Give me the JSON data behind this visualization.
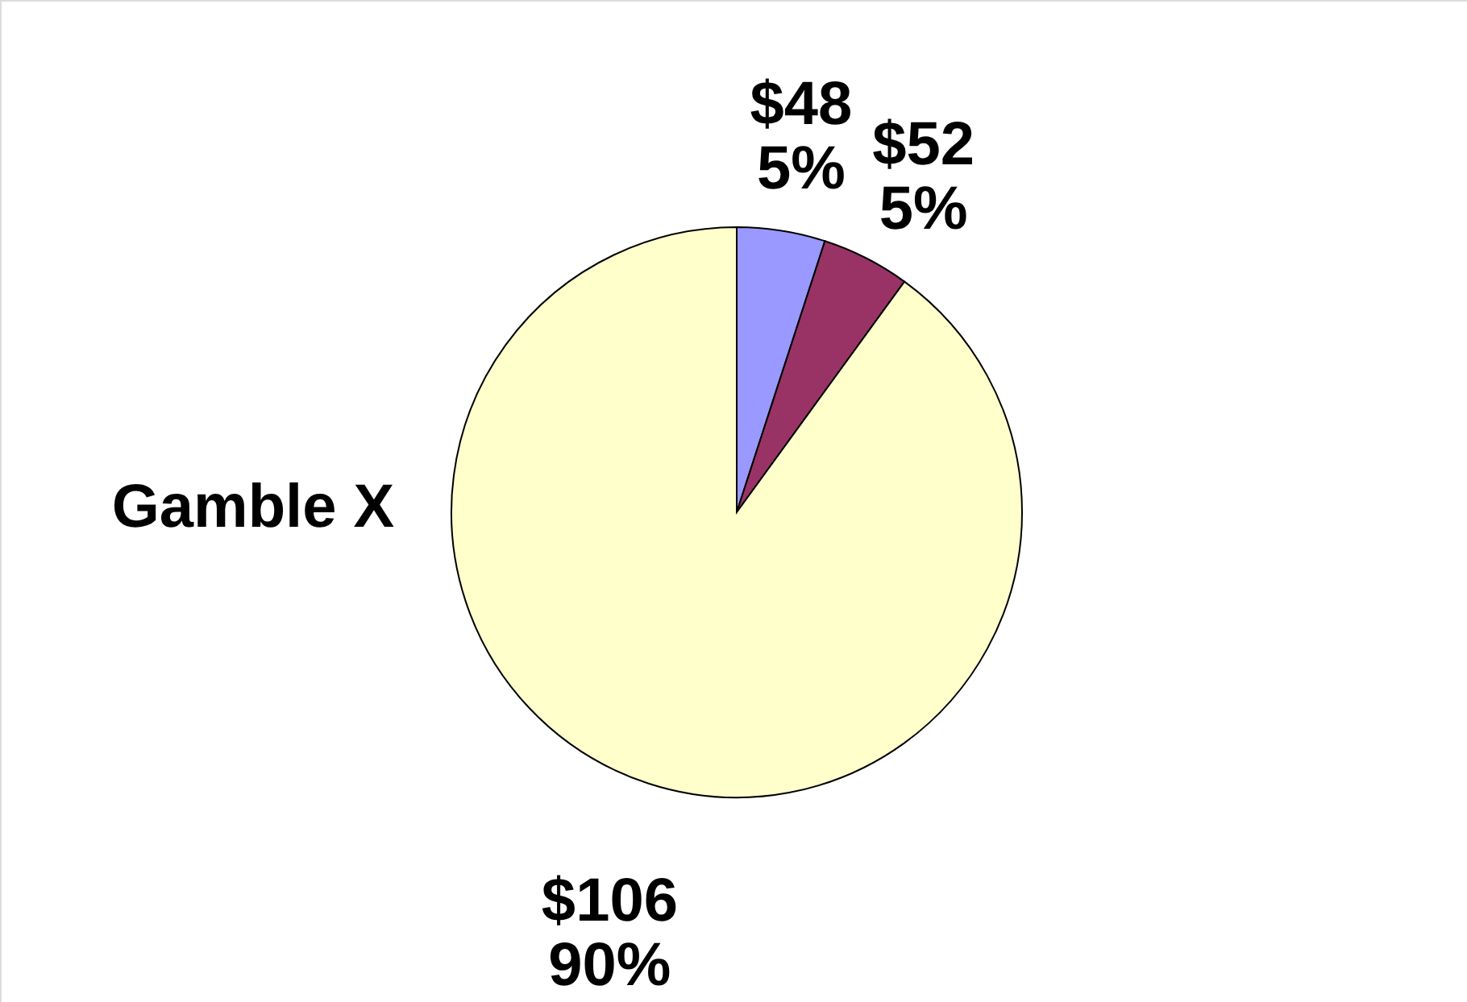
{
  "chart_data": {
    "type": "pie",
    "title": "Gamble X",
    "categories": [
      "$48",
      "$52",
      "$106"
    ],
    "values": [
      5,
      5,
      90
    ],
    "value_labels": [
      "5%",
      "5%",
      "90%"
    ],
    "colors": [
      "#9999ff",
      "#993366",
      "#ffffcc"
    ]
  }
}
